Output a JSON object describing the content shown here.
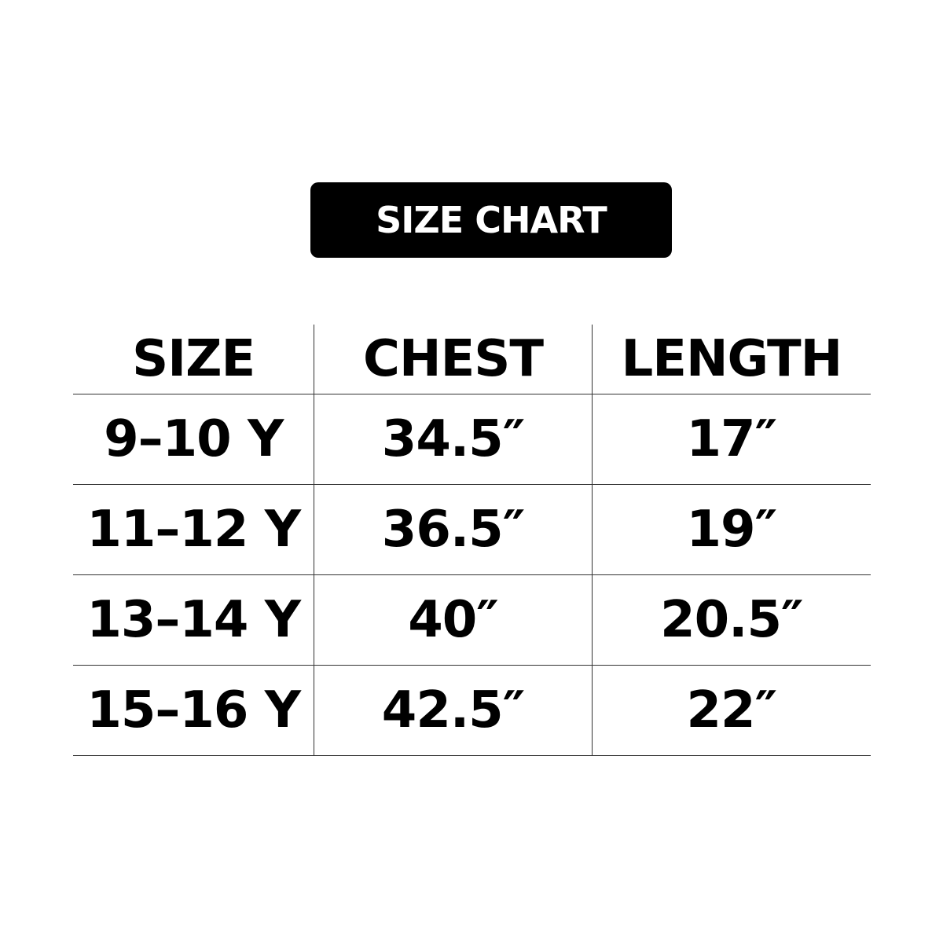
{
  "title": "SIZE CHART",
  "table": {
    "headers": [
      "SIZE",
      "CHEST",
      "LENGTH"
    ],
    "rows": [
      [
        "9–10 Y",
        "34.5″",
        "17″"
      ],
      [
        "11–12 Y",
        "36.5″",
        "19″"
      ],
      [
        "13–14 Y",
        "40″",
        "20.5″"
      ],
      [
        "15–16 Y",
        "42.5″",
        "22″"
      ]
    ]
  }
}
